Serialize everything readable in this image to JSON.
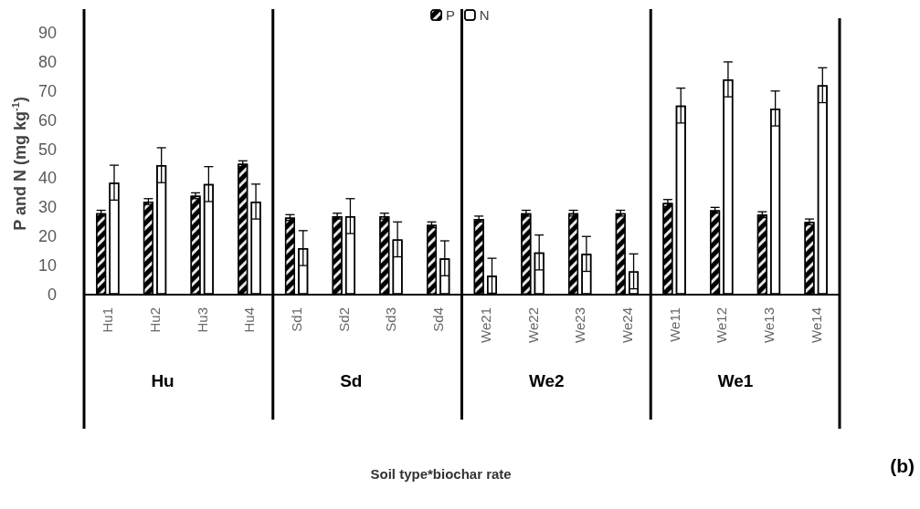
{
  "chart_data": {
    "type": "bar",
    "ylabel": "P and N (mg kg$^{-1}$)",
    "categories": [
      "Hu1",
      "Hu2",
      "Hu3",
      "Hu4",
      "Sd1",
      "Sd2",
      "Sd3",
      "Sd4",
      "We21",
      "We22",
      "We23",
      "We24",
      "We11",
      "We12",
      "We13",
      "We14"
    ],
    "series": [
      {
        "name": "P",
        "color": "#000000",
        "values": [
          28,
          32,
          34,
          45,
          26.5,
          27,
          27,
          24,
          26,
          28,
          28,
          28,
          31.5,
          29,
          27.5,
          25
        ],
        "errors": [
          1,
          1,
          1,
          1,
          1,
          1,
          1,
          1,
          1,
          1,
          1,
          1,
          1.2,
          1,
          1,
          1
        ]
      },
      {
        "name": "N",
        "color": "#ffffff",
        "values": [
          38.5,
          44.5,
          38,
          32,
          16,
          27,
          19,
          12.5,
          6.5,
          14.5,
          14,
          8,
          65,
          74,
          64,
          72
        ],
        "errors": [
          6,
          6,
          6,
          6,
          6,
          6,
          6,
          6,
          6,
          6,
          6,
          6,
          6,
          6,
          6,
          6
        ]
      }
    ],
    "ylim": [
      0,
      90
    ],
    "yticks": [
      0,
      10,
      20,
      30,
      40,
      50,
      60,
      70,
      80,
      90
    ],
    "grid": false,
    "legend": "top",
    "annotations": [
      "Hu",
      "Sd",
      "We2",
      "We1",
      "Soil type*biochar rate",
      "(b)"
    ]
  }
}
